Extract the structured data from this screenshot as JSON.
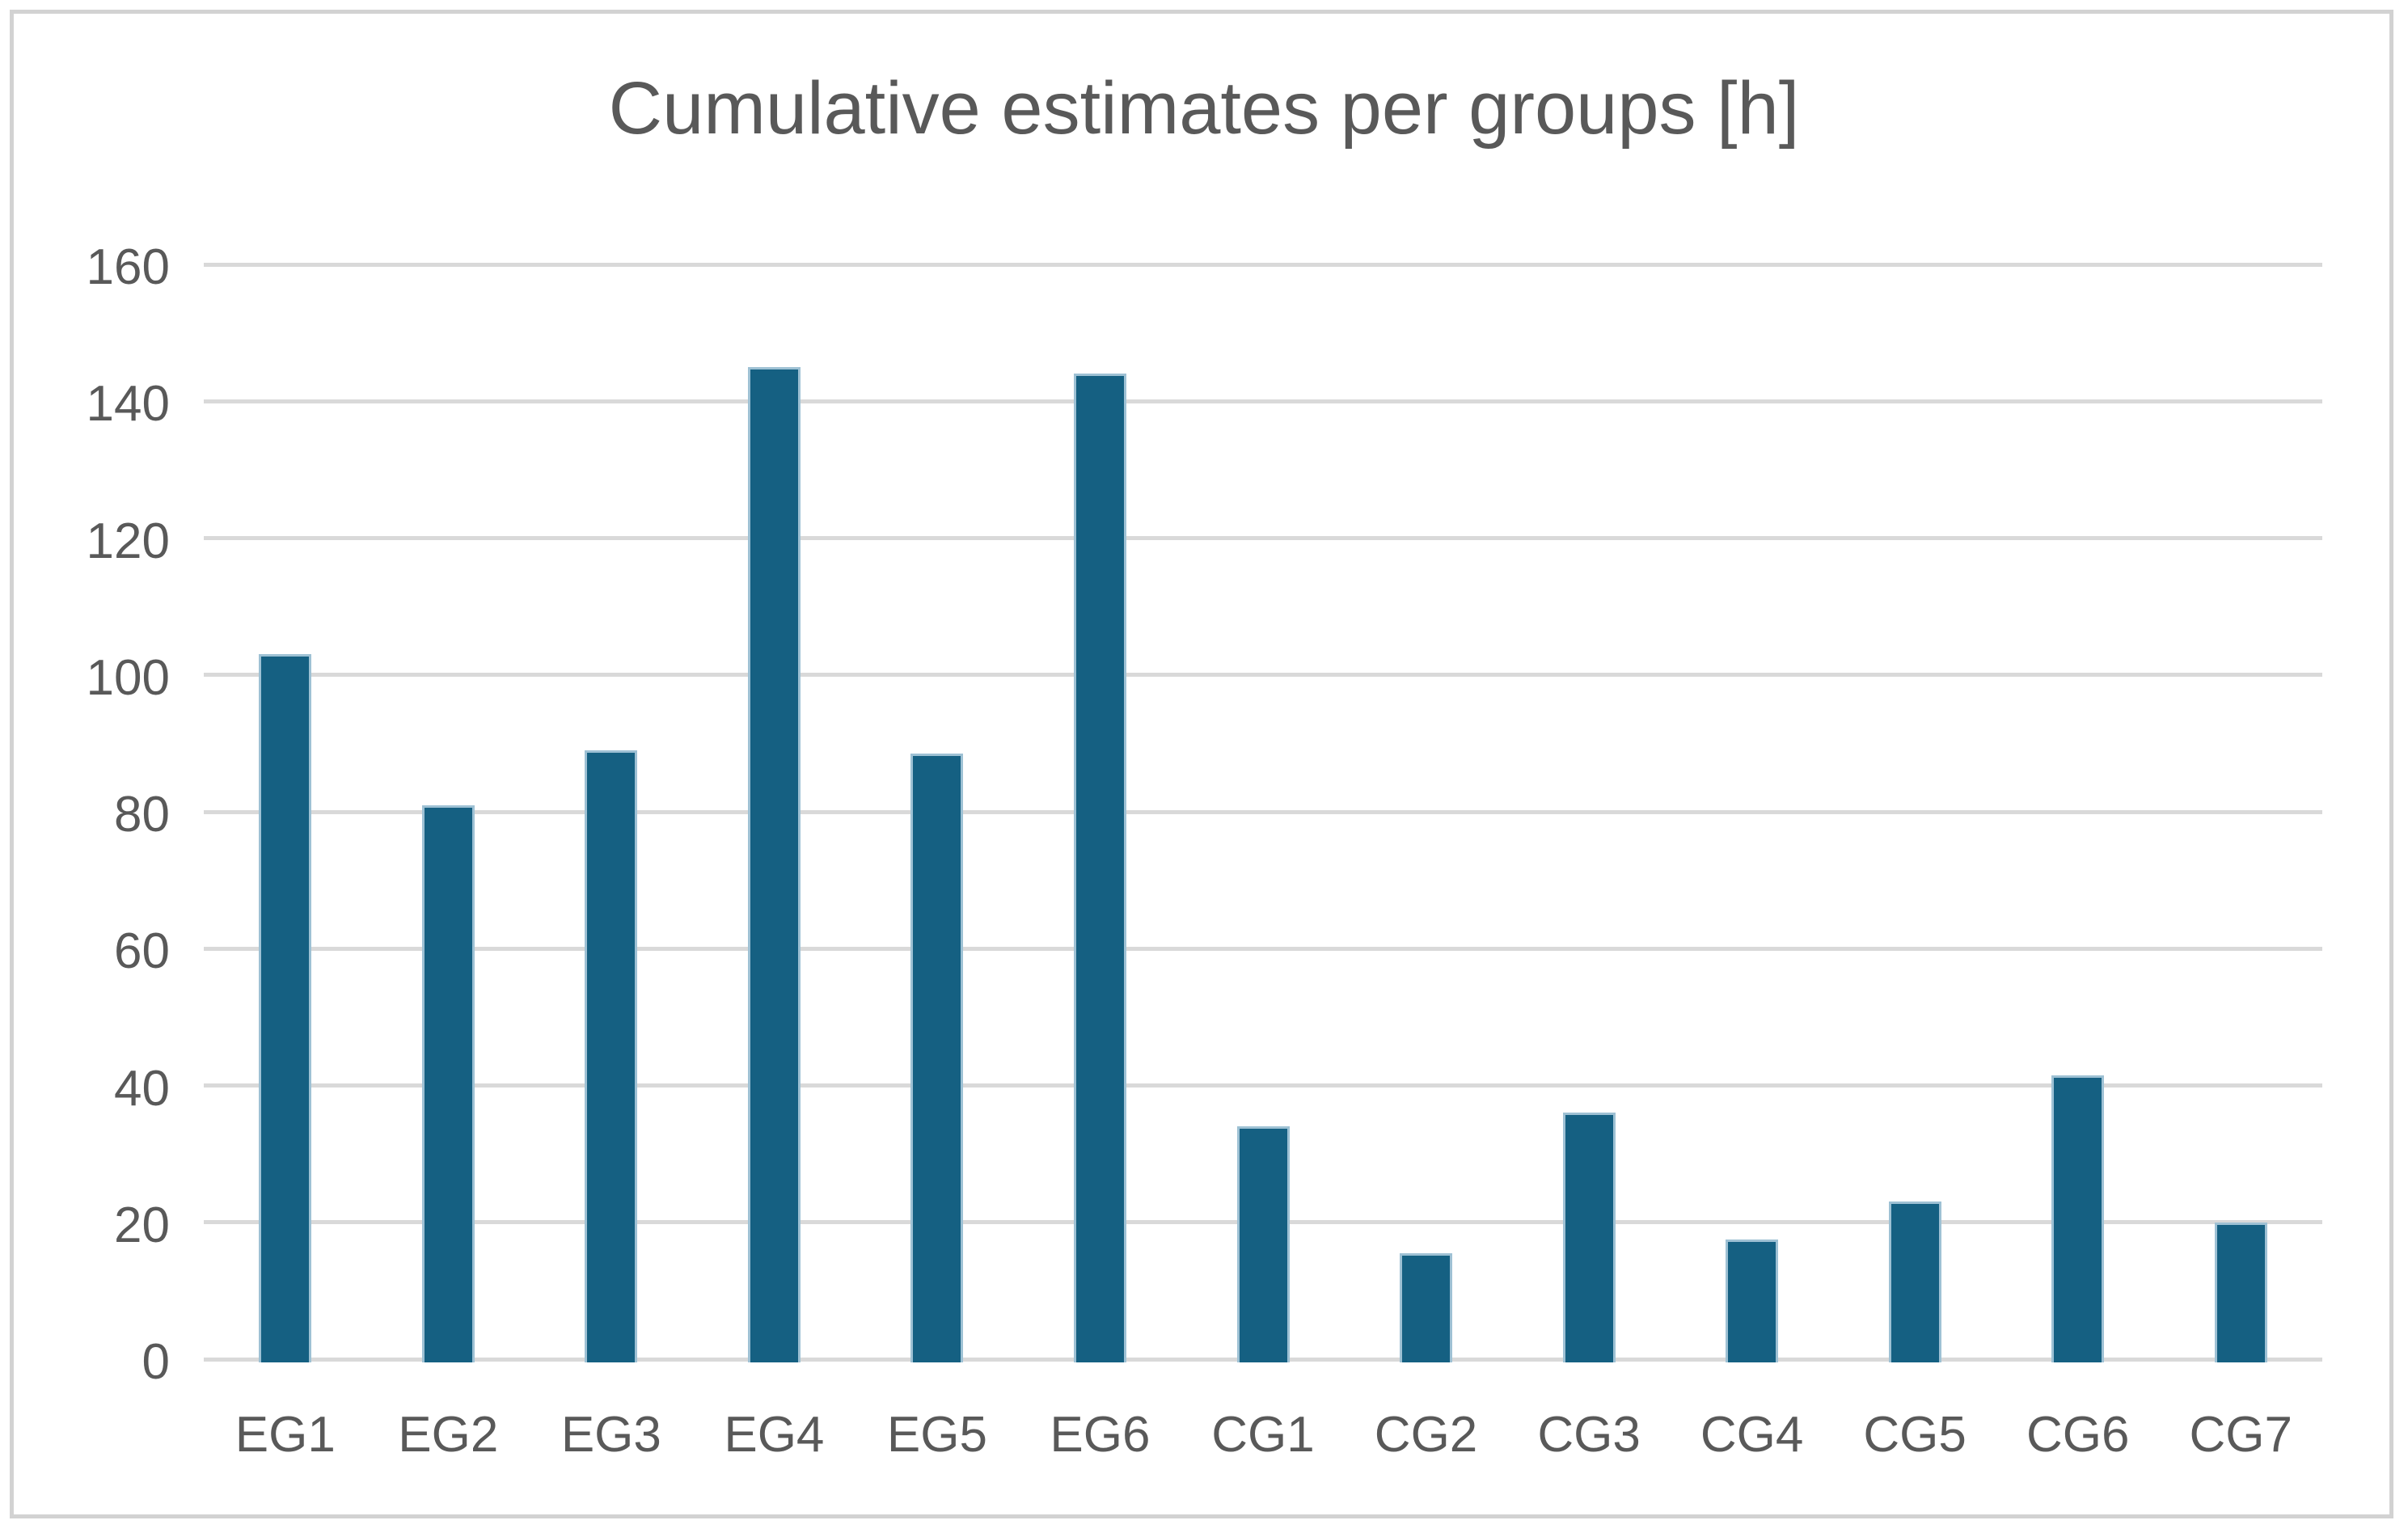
{
  "chart_data": {
    "type": "bar",
    "title": "Cumulative estimates per groups [h]",
    "categories": [
      "EG1",
      "EG2",
      "EG3",
      "EG4",
      "EG5",
      "EG6",
      "CG1",
      "CG2",
      "CG3",
      "CG4",
      "CG5",
      "CG6",
      "CG7"
    ],
    "values": [
      103,
      81,
      89,
      145,
      88.5,
      144,
      34,
      15.5,
      36,
      17.5,
      23,
      41.5,
      20
    ],
    "xlabel": "",
    "ylabel": "",
    "ylim": [
      0,
      160
    ],
    "ytick_step": 20,
    "yticks": [
      0,
      20,
      40,
      60,
      80,
      100,
      120,
      140,
      160
    ],
    "grid": true,
    "legend": false,
    "colors": {
      "bar_fill": "#156082",
      "bar_edge": "#9ec1d4",
      "gridline": "#d9d9d9",
      "text": "#595959",
      "frame_border": "#d2d2d2",
      "background": "#ffffff"
    }
  }
}
